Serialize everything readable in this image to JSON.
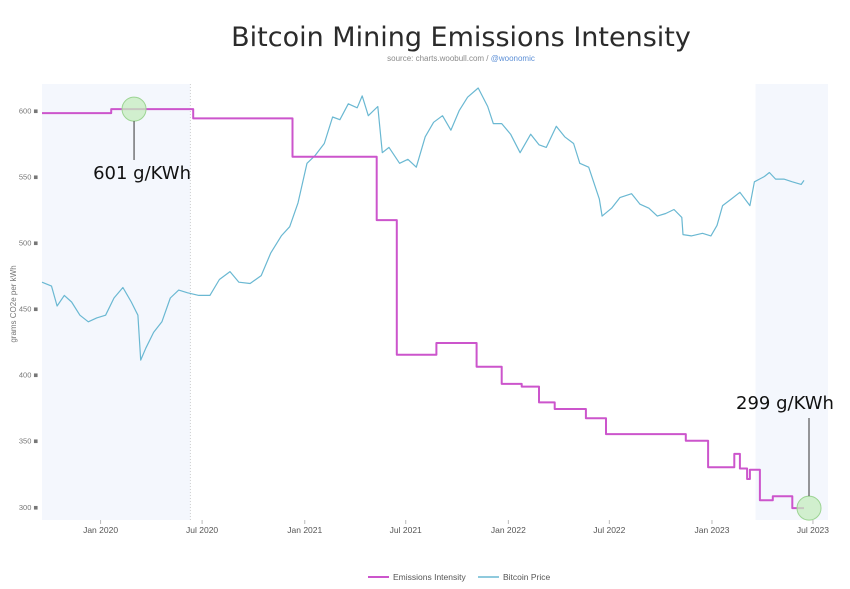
{
  "chart_data": {
    "type": "line",
    "title": "Bitcoin Mining Emissions Intensity",
    "subtitle_source": "source: charts.woobull.com / ",
    "subtitle_handle": "@woonomic",
    "ylabel": "grams CO2e per kWh",
    "ylim": [
      290,
      620
    ],
    "yticks": [
      300,
      350,
      400,
      450,
      500,
      550,
      600
    ],
    "ytick_labels": [
      "300 ■",
      "350 ■",
      "400 ■",
      "450 ■",
      "500 ■",
      "550 ■",
      "600 ■"
    ],
    "xlim": [
      "2019-09-18",
      "2023-07-28"
    ],
    "xticks": [
      {
        "date": "2020-01-01",
        "label": "Jan 2020"
      },
      {
        "date": "2020-07-01",
        "label": "Jul 2020"
      },
      {
        "date": "2021-01-01",
        "label": "Jan 2021"
      },
      {
        "date": "2021-07-01",
        "label": "Jul 2021"
      },
      {
        "date": "2022-01-01",
        "label": "Jan 2022"
      },
      {
        "date": "2022-07-01",
        "label": "Jul 2022"
      },
      {
        "date": "2023-01-01",
        "label": "Jan 2023"
      },
      {
        "date": "2023-07-01",
        "label": "Jul 2023"
      }
    ],
    "shaded_ranges": [
      {
        "from": "2019-09-18",
        "to": "2020-06-10"
      },
      {
        "from": "2023-03-20",
        "to": "2023-07-28"
      }
    ],
    "series": [
      {
        "name": "Emissions Intensity",
        "color": "#cc55cc",
        "step": true,
        "points": [
          [
            "2019-09-18",
            598
          ],
          [
            "2020-01-20",
            598
          ],
          [
            "2020-01-20",
            601
          ],
          [
            "2020-06-15",
            601
          ],
          [
            "2020-06-15",
            594
          ],
          [
            "2020-12-10",
            594
          ],
          [
            "2020-12-10",
            565
          ],
          [
            "2021-05-10",
            565
          ],
          [
            "2021-05-10",
            517
          ],
          [
            "2021-06-15",
            517
          ],
          [
            "2021-06-15",
            415
          ],
          [
            "2021-08-25",
            415
          ],
          [
            "2021-08-25",
            424
          ],
          [
            "2021-11-05",
            424
          ],
          [
            "2021-11-05",
            406
          ],
          [
            "2021-12-20",
            406
          ],
          [
            "2021-12-20",
            393
          ],
          [
            "2022-01-25",
            393
          ],
          [
            "2022-01-25",
            391
          ],
          [
            "2022-02-25",
            391
          ],
          [
            "2022-02-25",
            379
          ],
          [
            "2022-03-25",
            379
          ],
          [
            "2022-03-25",
            374
          ],
          [
            "2022-05-20",
            374
          ],
          [
            "2022-05-20",
            367
          ],
          [
            "2022-06-25",
            367
          ],
          [
            "2022-06-25",
            355
          ],
          [
            "2022-11-15",
            355
          ],
          [
            "2022-11-15",
            350
          ],
          [
            "2022-12-25",
            350
          ],
          [
            "2022-12-25",
            330
          ],
          [
            "2023-02-10",
            330
          ],
          [
            "2023-02-10",
            340
          ],
          [
            "2023-02-20",
            340
          ],
          [
            "2023-02-20",
            329
          ],
          [
            "2023-03-05",
            329
          ],
          [
            "2023-03-05",
            321
          ],
          [
            "2023-03-10",
            321
          ],
          [
            "2023-03-10",
            328
          ],
          [
            "2023-03-28",
            328
          ],
          [
            "2023-03-28",
            305
          ],
          [
            "2023-04-20",
            305
          ],
          [
            "2023-04-20",
            308
          ],
          [
            "2023-05-25",
            308
          ],
          [
            "2023-05-25",
            299
          ],
          [
            "2023-06-15",
            299
          ]
        ]
      },
      {
        "name": "Bitcoin Price",
        "color": "#6ab8d2",
        "step": false,
        "points": [
          [
            "2019-09-18",
            470
          ],
          [
            "2019-10-05",
            467
          ],
          [
            "2019-10-15",
            452
          ],
          [
            "2019-10-28",
            460
          ],
          [
            "2019-11-10",
            455
          ],
          [
            "2019-11-25",
            445
          ],
          [
            "2019-12-10",
            440
          ],
          [
            "2019-12-25",
            443
          ],
          [
            "2020-01-10",
            445
          ],
          [
            "2020-01-25",
            458
          ],
          [
            "2020-02-10",
            466
          ],
          [
            "2020-02-25",
            455
          ],
          [
            "2020-03-08",
            445
          ],
          [
            "2020-03-13",
            411
          ],
          [
            "2020-03-22",
            420
          ],
          [
            "2020-04-05",
            432
          ],
          [
            "2020-04-20",
            440
          ],
          [
            "2020-05-05",
            458
          ],
          [
            "2020-05-20",
            464
          ],
          [
            "2020-06-05",
            462
          ],
          [
            "2020-06-25",
            460
          ],
          [
            "2020-07-15",
            460
          ],
          [
            "2020-08-01",
            472
          ],
          [
            "2020-08-20",
            478
          ],
          [
            "2020-09-05",
            470
          ],
          [
            "2020-09-25",
            469
          ],
          [
            "2020-10-15",
            475
          ],
          [
            "2020-11-01",
            492
          ],
          [
            "2020-11-20",
            505
          ],
          [
            "2020-12-05",
            512
          ],
          [
            "2020-12-20",
            530
          ],
          [
            "2021-01-05",
            560
          ],
          [
            "2021-01-20",
            566
          ],
          [
            "2021-02-05",
            575
          ],
          [
            "2021-02-20",
            595
          ],
          [
            "2021-03-05",
            593
          ],
          [
            "2021-03-20",
            605
          ],
          [
            "2021-04-05",
            602
          ],
          [
            "2021-04-14",
            611
          ],
          [
            "2021-04-25",
            596
          ],
          [
            "2021-05-12",
            603
          ],
          [
            "2021-05-20",
            568
          ],
          [
            "2021-06-01",
            572
          ],
          [
            "2021-06-20",
            560
          ],
          [
            "2021-07-05",
            563
          ],
          [
            "2021-07-20",
            557
          ],
          [
            "2021-08-05",
            580
          ],
          [
            "2021-08-20",
            591
          ],
          [
            "2021-09-05",
            596
          ],
          [
            "2021-09-20",
            585
          ],
          [
            "2021-10-05",
            600
          ],
          [
            "2021-10-20",
            610
          ],
          [
            "2021-11-08",
            617
          ],
          [
            "2021-11-25",
            603
          ],
          [
            "2021-12-05",
            590
          ],
          [
            "2021-12-20",
            590
          ],
          [
            "2022-01-05",
            582
          ],
          [
            "2022-01-22",
            568
          ],
          [
            "2022-02-10",
            582
          ],
          [
            "2022-02-25",
            574
          ],
          [
            "2022-03-10",
            572
          ],
          [
            "2022-03-28",
            588
          ],
          [
            "2022-04-12",
            580
          ],
          [
            "2022-04-28",
            575
          ],
          [
            "2022-05-09",
            560
          ],
          [
            "2022-05-25",
            557
          ],
          [
            "2022-06-13",
            533
          ],
          [
            "2022-06-18",
            520
          ],
          [
            "2022-07-05",
            526
          ],
          [
            "2022-07-20",
            534
          ],
          [
            "2022-08-10",
            537
          ],
          [
            "2022-08-25",
            529
          ],
          [
            "2022-09-10",
            526
          ],
          [
            "2022-09-25",
            520
          ],
          [
            "2022-10-10",
            522
          ],
          [
            "2022-10-25",
            525
          ],
          [
            "2022-11-08",
            519
          ],
          [
            "2022-11-10",
            506
          ],
          [
            "2022-11-25",
            505
          ],
          [
            "2022-12-15",
            507
          ],
          [
            "2022-12-30",
            505
          ],
          [
            "2023-01-10",
            513
          ],
          [
            "2023-01-20",
            528
          ],
          [
            "2023-02-05",
            533
          ],
          [
            "2023-02-20",
            538
          ],
          [
            "2023-03-10",
            528
          ],
          [
            "2023-03-18",
            546
          ],
          [
            "2023-04-05",
            550
          ],
          [
            "2023-04-14",
            553
          ],
          [
            "2023-04-25",
            548
          ],
          [
            "2023-05-10",
            548
          ],
          [
            "2023-05-25",
            546
          ],
          [
            "2023-06-10",
            544
          ],
          [
            "2023-06-15",
            547
          ]
        ]
      }
    ],
    "annotations": [
      {
        "label": "601 g/KWh",
        "date": "2020-03-01",
        "value": 601
      },
      {
        "label": "299 g/KWh",
        "date": "2023-06-15",
        "value": 299
      }
    ],
    "legend": {
      "placement": "bottom-center"
    }
  }
}
